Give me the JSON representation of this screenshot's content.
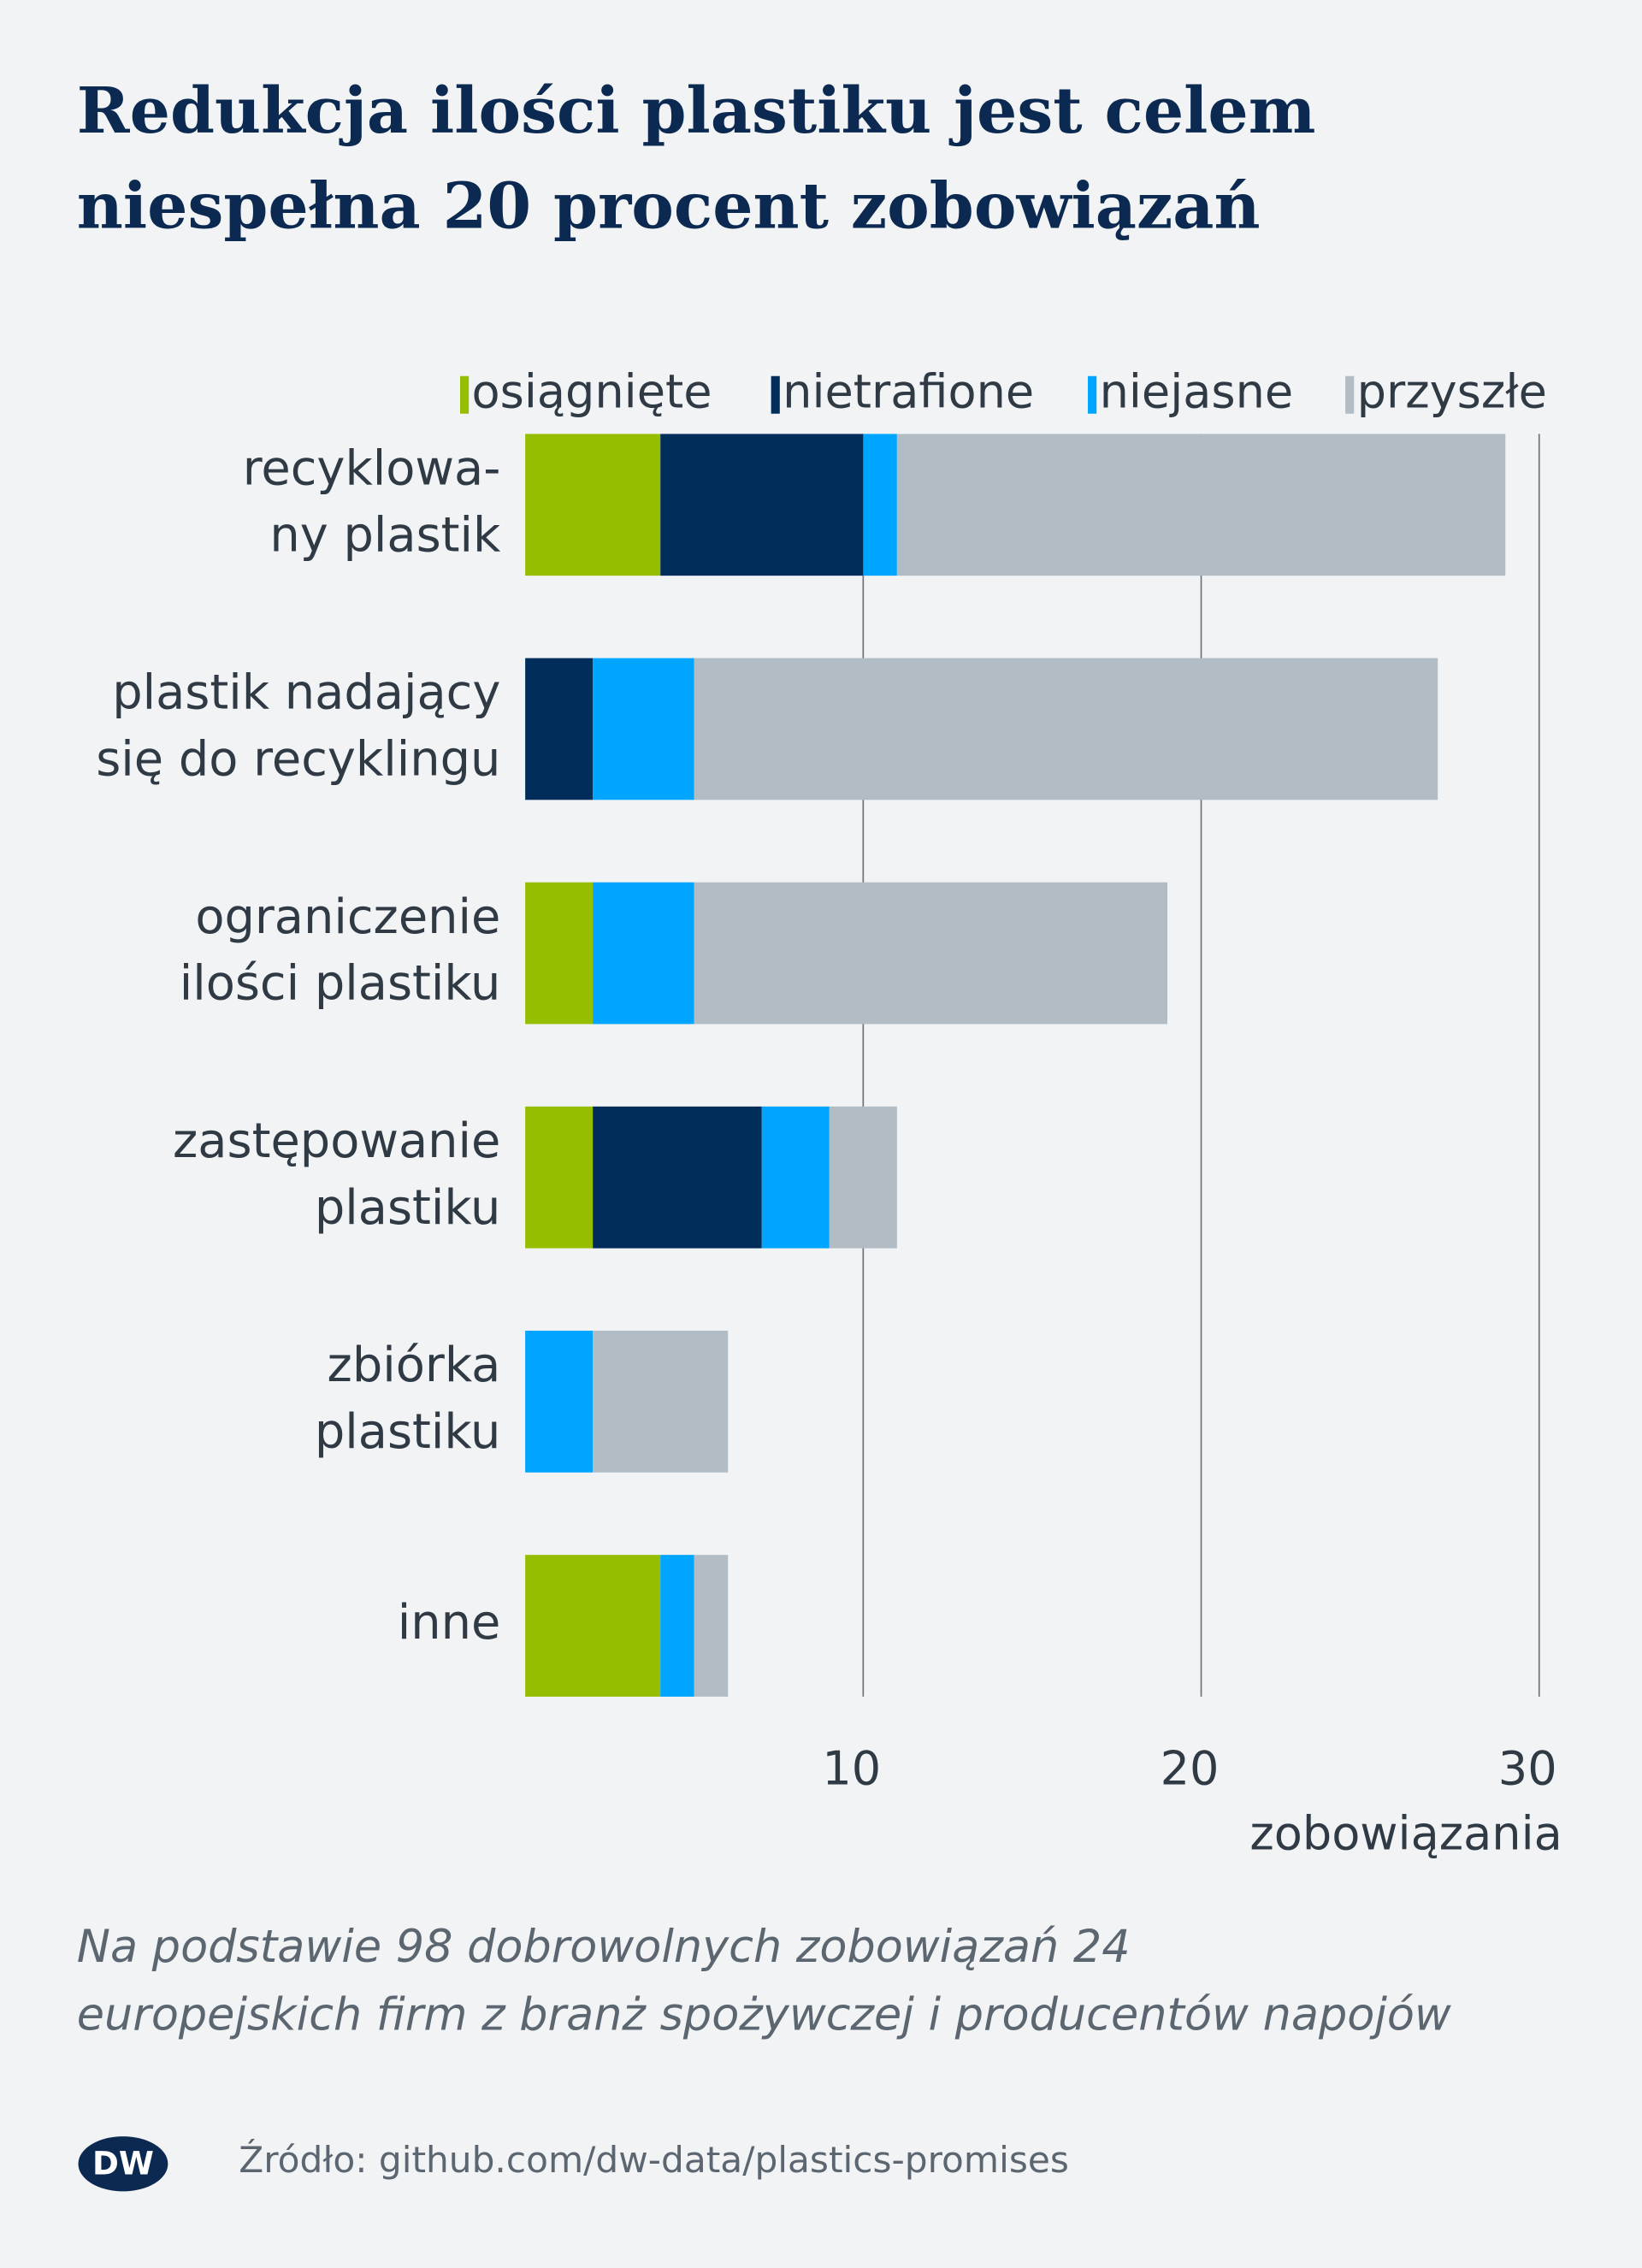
{
  "chart_data": {
    "type": "stacked_barh",
    "title": [
      "Redukcja ilości plastiku jest celem",
      "niespełna 20 procent zobowiązań"
    ],
    "categories": [
      [
        "recyklowa-",
        "ny plastik"
      ],
      [
        "plastik nadający",
        "się do recyklingu"
      ],
      [
        "ograniczenie",
        "ilości plastiku"
      ],
      [
        "zastępowanie",
        "plastiku"
      ],
      [
        "zbiórka",
        "plastiku"
      ],
      [
        "inne"
      ]
    ],
    "series": [
      {
        "name": "osiągnięte",
        "color": "#96be00",
        "values": [
          4,
          0,
          2,
          2,
          0,
          4
        ]
      },
      {
        "name": "nietrafione",
        "color": "#002d5a",
        "values": [
          6,
          2,
          0,
          5,
          0,
          0
        ]
      },
      {
        "name": "niejasne",
        "color": "#00a5ff",
        "values": [
          1,
          3,
          3,
          2,
          2,
          1
        ]
      },
      {
        "name": "przyszłe",
        "color": "#b2bcc4",
        "values": [
          18,
          22,
          14,
          2,
          4,
          1
        ]
      }
    ],
    "xlim": [
      0,
      30
    ],
    "xticks": [
      10,
      20,
      30
    ],
    "grid": true,
    "xlabel": "zobowiązania",
    "note": [
      "Na podstawie 98 dobrowolnych zobowiązań 24",
      "europejskich firm z branż spożywczej i producentów napojów"
    ],
    "source": "Źródło: github.com/dw-data/plastics-promises",
    "logo": "DW"
  }
}
